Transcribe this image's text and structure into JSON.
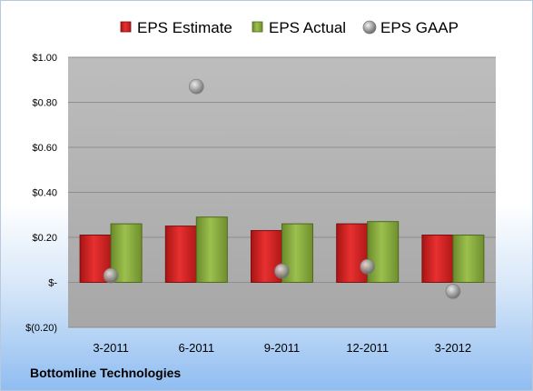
{
  "company": "Bottomline Technologies",
  "chart_data": {
    "type": "bar",
    "categories": [
      "3-2011",
      "6-2011",
      "9-2011",
      "12-2011",
      "3-2012"
    ],
    "series": [
      {
        "name": "EPS Estimate",
        "type": "bar",
        "color": "#d42020",
        "values": [
          0.21,
          0.25,
          0.23,
          0.26,
          0.21
        ]
      },
      {
        "name": "EPS Actual",
        "type": "bar",
        "color": "#86a83c",
        "values": [
          0.26,
          0.29,
          0.26,
          0.27,
          0.21
        ]
      },
      {
        "name": "EPS GAAP",
        "type": "scatter",
        "color": "#a6a6a6",
        "values": [
          0.03,
          0.87,
          0.05,
          0.07,
          -0.04
        ]
      }
    ],
    "ylim": [
      -0.2,
      1.0
    ],
    "yticks": [
      -0.2,
      0.0,
      0.2,
      0.4,
      0.6,
      0.8,
      1.0
    ],
    "ytick_labels": [
      "$(0.20)",
      "$-",
      "$0.20",
      "$0.40",
      "$0.60",
      "$0.80",
      "$1.00"
    ],
    "grid": true,
    "legend": "top"
  }
}
